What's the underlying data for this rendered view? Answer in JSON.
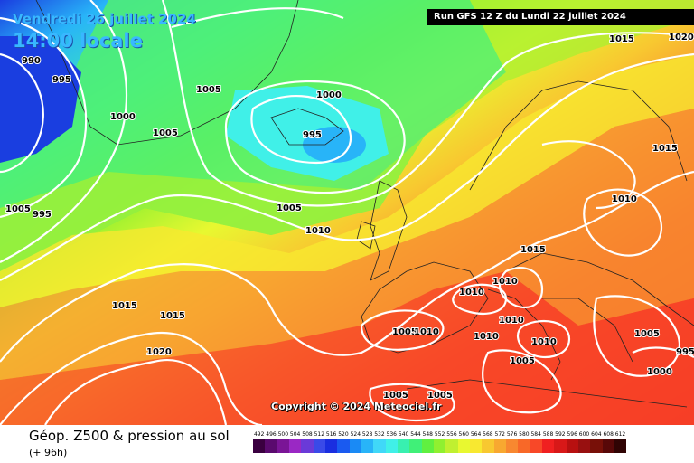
{
  "header": {
    "date": "Vendredi 26 juillet 2024",
    "time": "14:00 locale",
    "run": "Run GFS 12 Z du Lundi 22 juillet 2024"
  },
  "copyright": "Copyright © 2024 Meteociel.fr",
  "footer": {
    "title": "Géop. Z500 & pression au sol",
    "subtitle": "(+ 96h)"
  },
  "legend": {
    "values": [
      "492",
      "496",
      "500",
      "504",
      "508",
      "512",
      "516",
      "520",
      "524",
      "528",
      "532",
      "536",
      "540",
      "544",
      "548",
      "552",
      "556",
      "560",
      "564",
      "568",
      "572",
      "576",
      "580",
      "584",
      "588",
      "592",
      "596",
      "600",
      "604",
      "608",
      "612"
    ],
    "colors": [
      "#3a0040",
      "#5a0a6e",
      "#7a1596",
      "#9a28c4",
      "#6a3ad8",
      "#3a4ae8",
      "#1a2ee0",
      "#1a5af0",
      "#1a8af5",
      "#28b4f8",
      "#40d8f8",
      "#40f0e8",
      "#38f0b0",
      "#40f078",
      "#60f040",
      "#90f030",
      "#c0f030",
      "#e8f830",
      "#f8e830",
      "#f8c830",
      "#f8a830",
      "#f88830",
      "#f86828",
      "#f84828",
      "#f02020",
      "#d81818",
      "#b81010",
      "#981010",
      "#781008",
      "#580808",
      "#300404"
    ]
  },
  "isobars": [
    "990",
    "995",
    "1000",
    "1005",
    "1005",
    "995",
    "1005",
    "1000",
    "995",
    "1005",
    "1010",
    "1015",
    "1015",
    "1020",
    "1010",
    "1010",
    "1015",
    "1015",
    "1015",
    "1020",
    "1010",
    "1005",
    "1010",
    "1010",
    "1010",
    "1010",
    "1005",
    "1005",
    "1005",
    "995",
    "1000",
    "1005"
  ]
}
